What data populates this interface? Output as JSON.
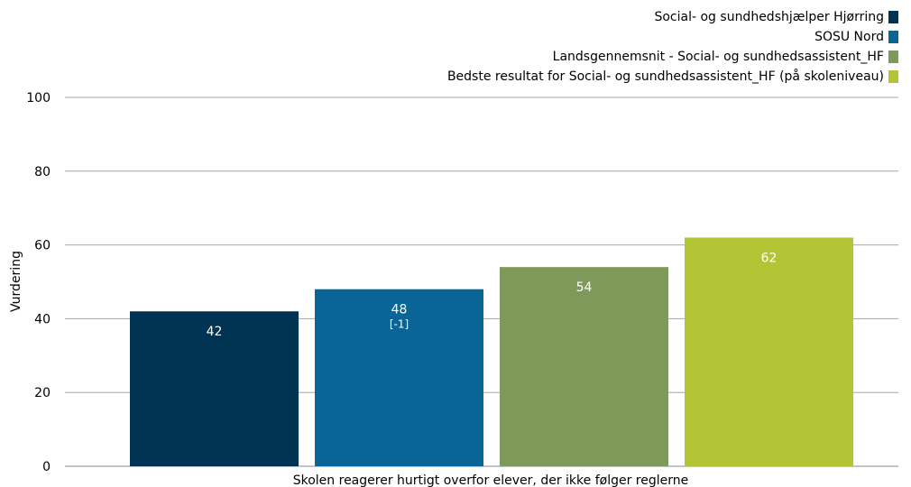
{
  "chart_data": {
    "type": "bar",
    "categories": [
      "Skolen reagerer hurtigt overfor elever, der ikke følger reglerne"
    ],
    "series": [
      {
        "name": "Social- og sundhedshjælper Hjørring",
        "values": [
          42
        ],
        "label": "42",
        "note": "",
        "color": "#003352"
      },
      {
        "name": "SOSU Nord",
        "values": [
          48
        ],
        "label": "48",
        "note": "[-1]",
        "color": "#0a6597"
      },
      {
        "name": "Landsgennemsnit - Social- og sundhedsassistent_HF",
        "values": [
          54
        ],
        "label": "54",
        "note": "",
        "color": "#7f995a"
      },
      {
        "name": "Bedste resultat for Social- og sundhedsassistent_HF (på skoleniveau)",
        "values": [
          62
        ],
        "label": "62",
        "note": "",
        "color": "#b3c535"
      }
    ],
    "xlabel": "Skolen reagerer hurtigt overfor elever, der ikke følger reglerne",
    "ylabel": "Vurdering",
    "ylim": [
      0,
      100
    ],
    "yticks": [
      "0",
      "20",
      "40",
      "60",
      "80",
      "100"
    ],
    "grid": true,
    "legend_position": "top-right"
  }
}
